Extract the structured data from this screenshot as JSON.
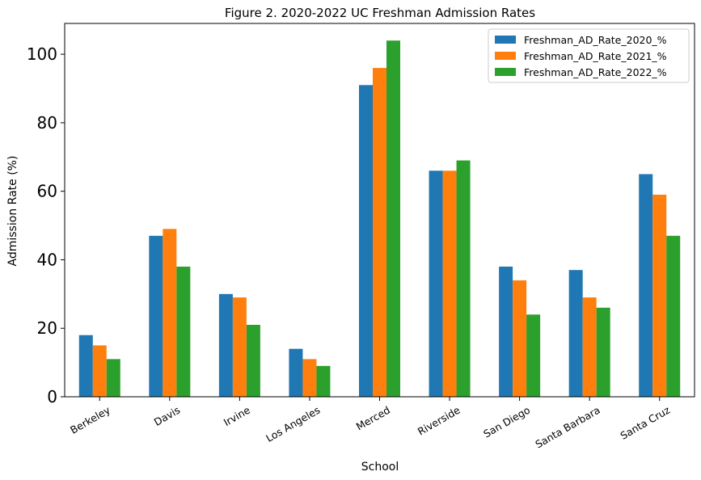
{
  "chart_data": {
    "type": "bar",
    "title": "Figure 2. 2020-2022 UC Freshman Admission Rates",
    "xlabel": "School",
    "ylabel": "Admission Rate (%)",
    "ylim": [
      0,
      109
    ],
    "yticks": [
      0,
      20,
      40,
      60,
      80,
      100
    ],
    "grid": false,
    "legend_position": "top-right",
    "categories": [
      "Berkeley",
      "Davis",
      "Irvine",
      "Los Angeles",
      "Merced",
      "Riverside",
      "San Diego",
      "Santa Barbara",
      "Santa Cruz"
    ],
    "series": [
      {
        "name": "Freshman_AD_Rate_2020_%",
        "color": "#1f77b4",
        "values": [
          18,
          47,
          30,
          14,
          91,
          66,
          38,
          37,
          65
        ]
      },
      {
        "name": "Freshman_AD_Rate_2021_%",
        "color": "#ff7f0e",
        "values": [
          15,
          49,
          29,
          11,
          96,
          66,
          34,
          29,
          59
        ]
      },
      {
        "name": "Freshman_AD_Rate_2022_%",
        "color": "#2ca02c",
        "values": [
          11,
          38,
          21,
          9,
          104,
          69,
          24,
          26,
          47
        ]
      }
    ]
  }
}
